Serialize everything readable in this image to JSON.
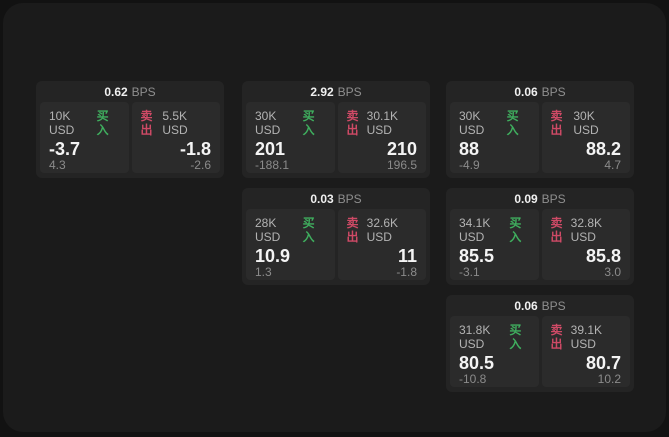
{
  "labels": {
    "bps_unit": "BPS",
    "buy": "买入",
    "sell": "卖出"
  },
  "colors": {
    "backdrop": "#121212",
    "page_bg": "#1b1b1b",
    "card_bg": "#242424",
    "panel_bg": "#2b2b2b",
    "buy_green": "#3fae5e",
    "sell_red": "#cf4a66"
  },
  "cards": [
    {
      "bps": "0.62",
      "buy": {
        "size": "10K USD",
        "price": "-3.7",
        "delta": "4.3"
      },
      "sell": {
        "size": "5.5K USD",
        "price": "-1.8",
        "delta": "-2.6"
      }
    },
    {
      "bps": "2.92",
      "buy": {
        "size": "30K USD",
        "price": "201",
        "delta": "-188.1"
      },
      "sell": {
        "size": "30.1K USD",
        "price": "210",
        "delta": "196.5"
      }
    },
    {
      "bps": "0.06",
      "buy": {
        "size": "30K USD",
        "price": "88",
        "delta": "-4.9"
      },
      "sell": {
        "size": "30K USD",
        "price": "88.2",
        "delta": "4.7"
      }
    },
    {
      "bps": "0.03",
      "buy": {
        "size": "28K USD",
        "price": "10.9",
        "delta": "1.3"
      },
      "sell": {
        "size": "32.6K USD",
        "price": "11",
        "delta": "-1.8"
      }
    },
    {
      "bps": "0.09",
      "buy": {
        "size": "34.1K USD",
        "price": "85.5",
        "delta": "-3.1"
      },
      "sell": {
        "size": "32.8K USD",
        "price": "85.8",
        "delta": "3.0"
      }
    },
    {
      "bps": "0.06",
      "buy": {
        "size": "31.8K USD",
        "price": "80.5",
        "delta": "-10.8"
      },
      "sell": {
        "size": "39.1K USD",
        "price": "80.7",
        "delta": "10.2"
      }
    }
  ]
}
